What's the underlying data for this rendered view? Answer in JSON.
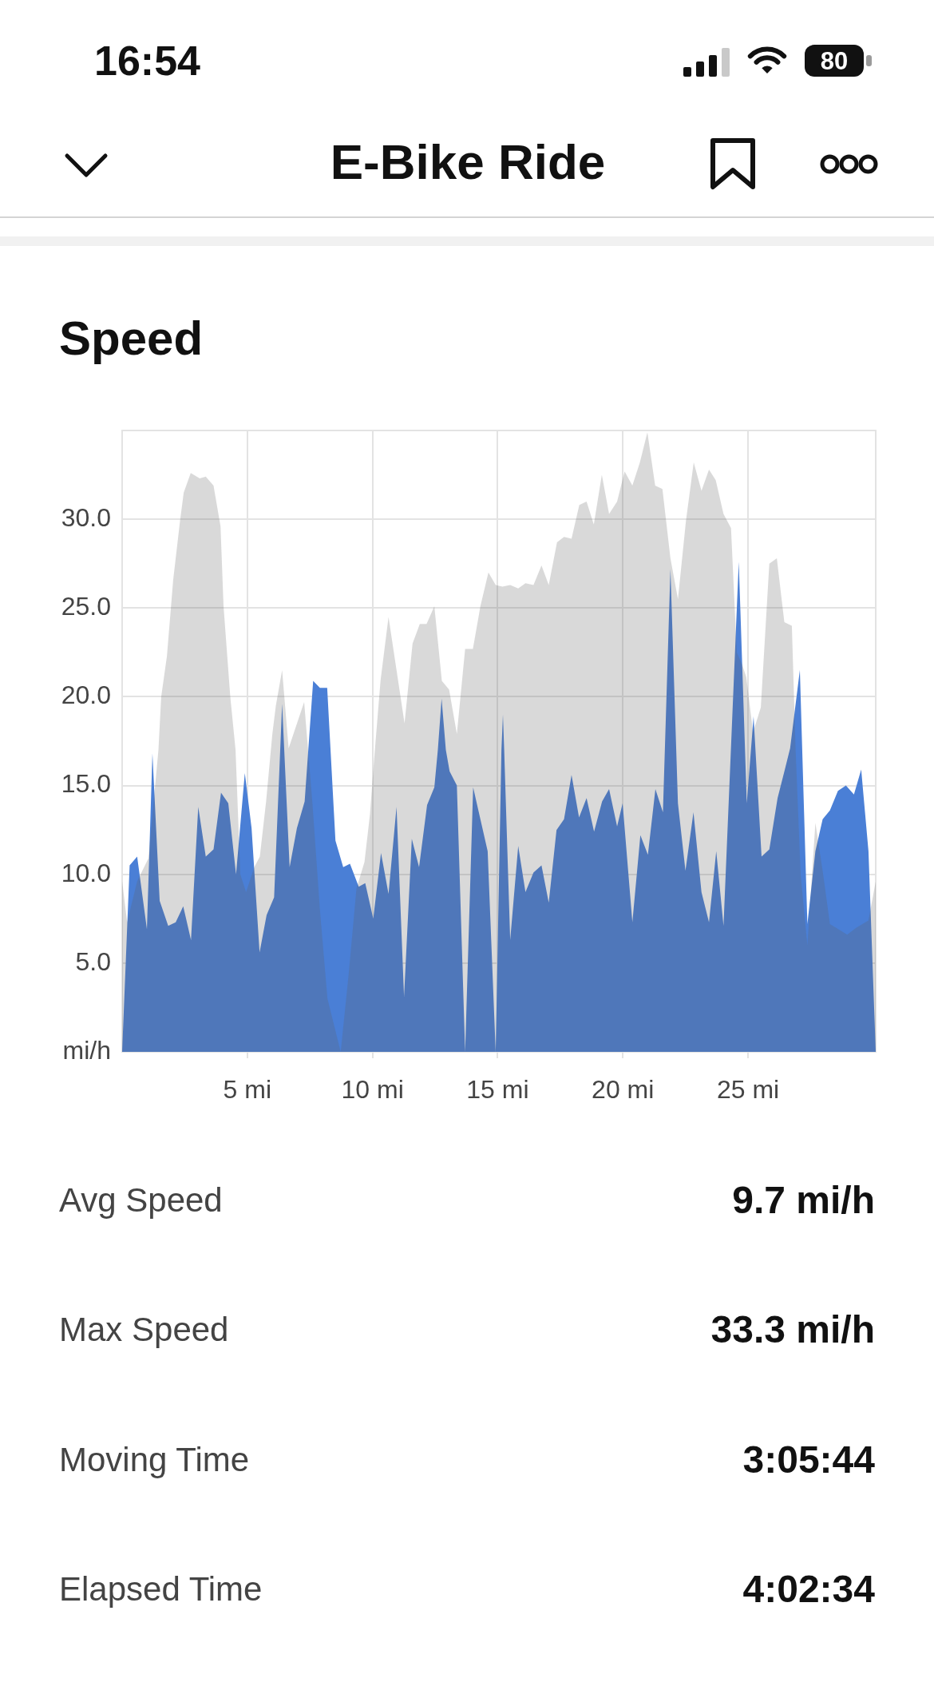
{
  "chart_data": {
    "type": "area",
    "title": "Speed",
    "series": [
      {
        "color": "#4a7fd6",
        "x": [
          0,
          0.3,
          0.6,
          0.99,
          1.21,
          1.5,
          1.84,
          2.14,
          2.44,
          2.75,
          3.04,
          3.34,
          3.65,
          3.95,
          4.24,
          4.55,
          4.9,
          5.17,
          5.49,
          5.77,
          6.07,
          6.39,
          6.69,
          6.98,
          7.29,
          7.63,
          7.9,
          8.19,
          8.52,
          8.83,
          9.1,
          9.45,
          9.71,
          10.03,
          10.34,
          10.64,
          10.96,
          11.26,
          11.57,
          11.86,
          12.18,
          12.47,
          12.61,
          12.76,
          12.93,
          13.08,
          13.37,
          13.7,
          14.02,
          14.6,
          14.92,
          15.15,
          15.21,
          15.26,
          15.5,
          15.82,
          16.11,
          16.43,
          16.75,
          17.04,
          17.35,
          17.65,
          17.95,
          18.25,
          18.55,
          18.85,
          19.17,
          19.45,
          19.77,
          19.99,
          20.38,
          20.7,
          21.0,
          21.3,
          21.6,
          21.9,
          22.2,
          22.5,
          22.82,
          23.14,
          23.44,
          23.73,
          24.02,
          24.63,
          24.95,
          25.22,
          25.54,
          25.85,
          26.18,
          26.47,
          26.68,
          27.07,
          27.37,
          27.69,
          27.98,
          28.27,
          28.59,
          28.91,
          29.23,
          29.52,
          29.81,
          30.1
        ],
        "values": [
          0,
          10.5,
          11.0,
          6.9,
          16.8,
          8.5,
          7.1,
          7.3,
          8.2,
          6.3,
          13.8,
          11.0,
          11.4,
          14.6,
          14.0,
          10.0,
          15.7,
          12.6,
          5.6,
          7.7,
          8.7,
          19.6,
          10.4,
          12.6,
          14.1,
          20.9,
          20.5,
          20.5,
          11.9,
          10.4,
          10.6,
          9.3,
          9.5,
          7.5,
          11.2,
          8.9,
          13.8,
          3.1,
          12.0,
          10.4,
          13.9,
          14.9,
          17.0,
          19.9,
          17.0,
          15.8,
          15.0,
          0,
          14.9,
          11.3,
          0,
          17.0,
          19.0,
          17.0,
          6.3,
          11.6,
          9.0,
          10.1,
          10.5,
          8.4,
          12.5,
          13.1,
          15.6,
          13.2,
          14.3,
          12.4,
          14.1,
          14.8,
          12.7,
          14.0,
          7.3,
          12.2,
          11.1,
          14.8,
          13.5,
          27.2,
          14.0,
          10.2,
          13.5,
          9.0,
          7.3,
          11.3,
          7.1,
          27.6,
          14.0,
          18.9,
          11.0,
          11.4,
          14.3,
          15.9,
          17.1,
          21.5,
          7.2,
          11.3,
          13.1,
          13.6,
          14.7,
          15.0,
          14.5,
          15.9,
          11.3,
          0
        ]
      },
      {
        "color": "#d9d9d9",
        "x": [
          0,
          0.2,
          0.6,
          1.05,
          1.45,
          1.56,
          1.79,
          2.04,
          2.32,
          2.46,
          2.74,
          3.1,
          3.34,
          3.65,
          3.93,
          4.05,
          4.32,
          4.53,
          4.72,
          4.95,
          5.28,
          5.5,
          5.75,
          6.0,
          6.14,
          6.39,
          6.65,
          7.27,
          7.6,
          7.9,
          8.2,
          8.73,
          9.05,
          9.36,
          9.68,
          9.9,
          10.06,
          10.32,
          10.64,
          11.28,
          11.6,
          11.89,
          12.16,
          12.47,
          12.77,
          13.06,
          13.37,
          13.7,
          14.01,
          14.31,
          14.63,
          14.92,
          15.19,
          15.5,
          15.82,
          16.11,
          16.43,
          16.75,
          17.04,
          17.37,
          17.65,
          17.95,
          18.26,
          18.55,
          18.84,
          19.16,
          19.45,
          19.77,
          20.07,
          20.38,
          20.68,
          20.98,
          21.29,
          21.58,
          21.9,
          22.2,
          22.52,
          22.83,
          23.14,
          23.44,
          23.71,
          24.02,
          24.32,
          24.55,
          24.77,
          24.93,
          25.2,
          25.51,
          25.85,
          26.15,
          26.45,
          26.75,
          26.9,
          27.1,
          27.37,
          27.69,
          28.0,
          28.27,
          28.96,
          29.33,
          29.81,
          30.1
        ],
        "values": [
          9.6,
          7.3,
          9.6,
          10.9,
          17.0,
          20.0,
          22.3,
          26.6,
          30.0,
          31.5,
          32.6,
          32.3,
          32.4,
          31.9,
          29.6,
          25.1,
          20.0,
          17.0,
          10.0,
          9.0,
          10.4,
          11.0,
          14.1,
          17.9,
          19.5,
          21.5,
          17.1,
          19.7,
          14.0,
          8.0,
          3.0,
          0,
          4.4,
          9.2,
          10.7,
          13.4,
          16.4,
          20.9,
          24.5,
          18.5,
          23.0,
          24.1,
          24.1,
          25.1,
          20.9,
          20.4,
          17.9,
          22.7,
          22.7,
          25.1,
          27.0,
          26.3,
          26.2,
          26.3,
          26.1,
          26.4,
          26.3,
          27.4,
          26.3,
          28.7,
          29.0,
          28.9,
          30.8,
          31.0,
          29.7,
          32.5,
          30.3,
          31.0,
          32.7,
          31.9,
          33.2,
          34.9,
          31.9,
          31.7,
          27.8,
          25.5,
          29.9,
          33.2,
          31.6,
          32.8,
          32.2,
          30.3,
          29.5,
          22.5,
          21.8,
          21.1,
          18.0,
          19.4,
          27.5,
          27.8,
          24.2,
          24.0,
          17.0,
          10.0,
          6.0,
          12.9,
          10.0,
          7.2,
          6.6,
          7.0,
          7.4,
          9.6
        ]
      }
    ],
    "xlim": [
      0,
      30.1
    ],
    "xticks": [
      {
        "value": 5,
        "label": "5 mi"
      },
      {
        "value": 10,
        "label": "10 mi"
      },
      {
        "value": 15,
        "label": "15 mi"
      },
      {
        "value": 20,
        "label": "20 mi"
      },
      {
        "value": 25,
        "label": "25 mi"
      }
    ],
    "ylim": [
      0,
      35
    ],
    "yticks": [
      {
        "value": 0,
        "label": "mi/h"
      },
      {
        "value": 5,
        "label": "5.0"
      },
      {
        "value": 10,
        "label": "10.0"
      },
      {
        "value": 15,
        "label": "15.0"
      },
      {
        "value": 20,
        "label": "20.0"
      },
      {
        "value": 25,
        "label": "25.0"
      },
      {
        "value": 30,
        "label": "30.0"
      }
    ],
    "grid": true,
    "legend": false,
    "marker": "none",
    "annotations": [
      "16:54",
      "80",
      "E-Bike Ride",
      "Avg Speed",
      "9.7 mi/h",
      "Max Speed",
      "33.3 mi/h",
      "Moving Time",
      "3:05:44",
      "Elapsed Time",
      "4:02:34"
    ]
  }
}
